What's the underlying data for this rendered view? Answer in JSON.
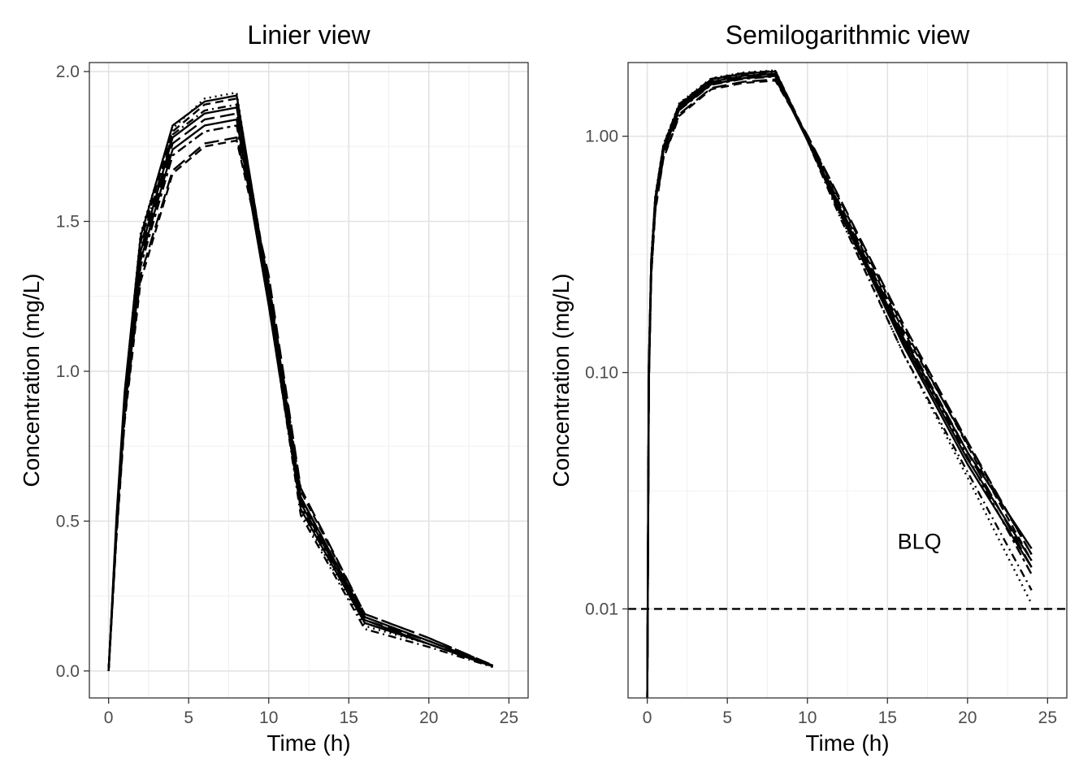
{
  "chart_data": [
    {
      "type": "line",
      "title": "Linier view",
      "xlabel": "Time (h)",
      "ylabel": "Concentration (mg/L)",
      "xlim": [
        -1.2,
        26.2
      ],
      "ylim": [
        -0.09,
        2.03
      ],
      "yscale": "linear",
      "grid": true,
      "legend": "none",
      "x_ticks": [
        0,
        5,
        10,
        15,
        20,
        25
      ],
      "x_tick_labels": [
        "0",
        "5",
        "10",
        "15",
        "20",
        "25"
      ],
      "y_ticks": [
        0.0,
        0.5,
        1.0,
        1.5,
        2.0
      ],
      "y_tick_labels": [
        "0.0",
        "0.5",
        "1.0",
        "1.5",
        "2.0"
      ],
      "x": [
        0,
        0.5,
        1,
        2,
        4,
        6,
        8,
        10,
        12,
        16,
        20,
        24
      ],
      "series": [
        {
          "line_style": "solid",
          "values": [
            0,
            0.52,
            0.93,
            1.45,
            1.82,
            1.9,
            1.92,
            1.27,
            0.58,
            0.18,
            0.1,
            0.018
          ]
        },
        {
          "line_style": "solid",
          "values": [
            0,
            0.5,
            0.9,
            1.4,
            1.78,
            1.86,
            1.88,
            1.25,
            0.56,
            0.17,
            0.09,
            0.016
          ]
        },
        {
          "line_style": "solid",
          "values": [
            0,
            0.48,
            0.88,
            1.37,
            1.74,
            1.82,
            1.84,
            1.22,
            0.54,
            0.16,
            0.09,
            0.015
          ]
        },
        {
          "line_style": "dashed",
          "values": [
            0,
            0.49,
            0.9,
            1.43,
            1.8,
            1.89,
            1.91,
            1.28,
            0.57,
            0.18,
            0.1,
            0.017
          ]
        },
        {
          "line_style": "dashed",
          "values": [
            0,
            0.45,
            0.83,
            1.3,
            1.66,
            1.75,
            1.77,
            1.3,
            0.6,
            0.19,
            0.11,
            0.018
          ]
        },
        {
          "line_style": "longdash",
          "values": [
            0,
            0.46,
            0.84,
            1.32,
            1.67,
            1.76,
            1.78,
            1.32,
            0.61,
            0.19,
            0.11,
            0.019
          ]
        },
        {
          "line_style": "dotted",
          "values": [
            0,
            0.51,
            0.92,
            1.46,
            1.81,
            1.91,
            1.93,
            1.24,
            0.53,
            0.15,
            0.09,
            0.014
          ]
        },
        {
          "line_style": "dotdash",
          "values": [
            0,
            0.5,
            0.91,
            1.42,
            1.79,
            1.87,
            1.89,
            1.23,
            0.52,
            0.14,
            0.08,
            0.013
          ]
        },
        {
          "line_style": "twodash",
          "values": [
            0,
            0.47,
            0.86,
            1.35,
            1.72,
            1.8,
            1.82,
            1.26,
            0.55,
            0.16,
            0.09,
            0.015
          ]
        },
        {
          "line_style": "longdash",
          "values": [
            0,
            0.49,
            0.89,
            1.39,
            1.76,
            1.84,
            1.86,
            1.29,
            0.58,
            0.17,
            0.1,
            0.016
          ]
        }
      ]
    },
    {
      "type": "line",
      "title": "Semilogarithmic view",
      "xlabel": "Time (h)",
      "ylabel": "Concentration (mg/L)",
      "xlim": [
        -1.2,
        26.2
      ],
      "ylim": [
        0.0042,
        2.05
      ],
      "yscale": "log10",
      "grid": true,
      "legend": "none",
      "x_ticks": [
        0,
        5,
        10,
        15,
        20,
        25
      ],
      "x_tick_labels": [
        "0",
        "5",
        "10",
        "15",
        "20",
        "25"
      ],
      "y_ticks": [
        0.01,
        0.1,
        1.0
      ],
      "y_tick_labels": [
        "0.01",
        "0.10",
        "1.00"
      ],
      "x": [
        0,
        0.1,
        0.25,
        0.5,
        1,
        2,
        4,
        6,
        8,
        10,
        12,
        16,
        20,
        24
      ],
      "series": [
        {
          "line_style": "solid",
          "values": [
            0.004,
            0.11,
            0.3,
            0.55,
            0.9,
            1.36,
            1.74,
            1.84,
            1.88,
            0.98,
            0.5,
            0.14,
            0.046,
            0.018
          ]
        },
        {
          "line_style": "solid",
          "values": [
            0.004,
            0.1,
            0.29,
            0.53,
            0.88,
            1.33,
            1.7,
            1.8,
            1.84,
            0.97,
            0.49,
            0.135,
            0.043,
            0.016
          ]
        },
        {
          "line_style": "solid",
          "values": [
            0.004,
            0.1,
            0.28,
            0.52,
            0.86,
            1.3,
            1.66,
            1.76,
            1.8,
            0.96,
            0.48,
            0.13,
            0.041,
            0.015
          ]
        },
        {
          "line_style": "dashed",
          "values": [
            0.004,
            0.11,
            0.3,
            0.55,
            0.91,
            1.37,
            1.75,
            1.85,
            1.89,
            0.99,
            0.52,
            0.15,
            0.05,
            0.017
          ]
        },
        {
          "line_style": "dashed",
          "values": [
            0.004,
            0.09,
            0.26,
            0.48,
            0.8,
            1.22,
            1.58,
            1.68,
            1.72,
            1.0,
            0.54,
            0.155,
            0.049,
            0.016
          ]
        },
        {
          "line_style": "longdash",
          "values": [
            0.004,
            0.09,
            0.26,
            0.49,
            0.81,
            1.24,
            1.6,
            1.7,
            1.74,
            1.01,
            0.55,
            0.16,
            0.051,
            0.017
          ]
        },
        {
          "line_style": "dotted",
          "values": [
            0.004,
            0.11,
            0.31,
            0.56,
            0.92,
            1.38,
            1.76,
            1.86,
            1.9,
            0.97,
            0.47,
            0.12,
            0.036,
            0.0105
          ]
        },
        {
          "line_style": "dotdash",
          "values": [
            0.004,
            0.11,
            0.3,
            0.55,
            0.9,
            1.35,
            1.73,
            1.83,
            1.87,
            0.96,
            0.46,
            0.12,
            0.038,
            0.012
          ]
        },
        {
          "line_style": "twodash",
          "values": [
            0.004,
            0.1,
            0.28,
            0.51,
            0.85,
            1.29,
            1.65,
            1.75,
            1.79,
            0.98,
            0.5,
            0.14,
            0.044,
            0.014
          ]
        },
        {
          "line_style": "longdash",
          "values": [
            0.004,
            0.1,
            0.29,
            0.52,
            0.87,
            1.31,
            1.68,
            1.78,
            1.82,
            0.99,
            0.51,
            0.145,
            0.046,
            0.015
          ]
        }
      ],
      "reference_lines": [
        {
          "axis": "y",
          "value": 0.01,
          "line_style": "dashed"
        }
      ],
      "annotations": [
        {
          "text": "BLQ",
          "x": 17,
          "y": 0.019
        }
      ]
    }
  ]
}
